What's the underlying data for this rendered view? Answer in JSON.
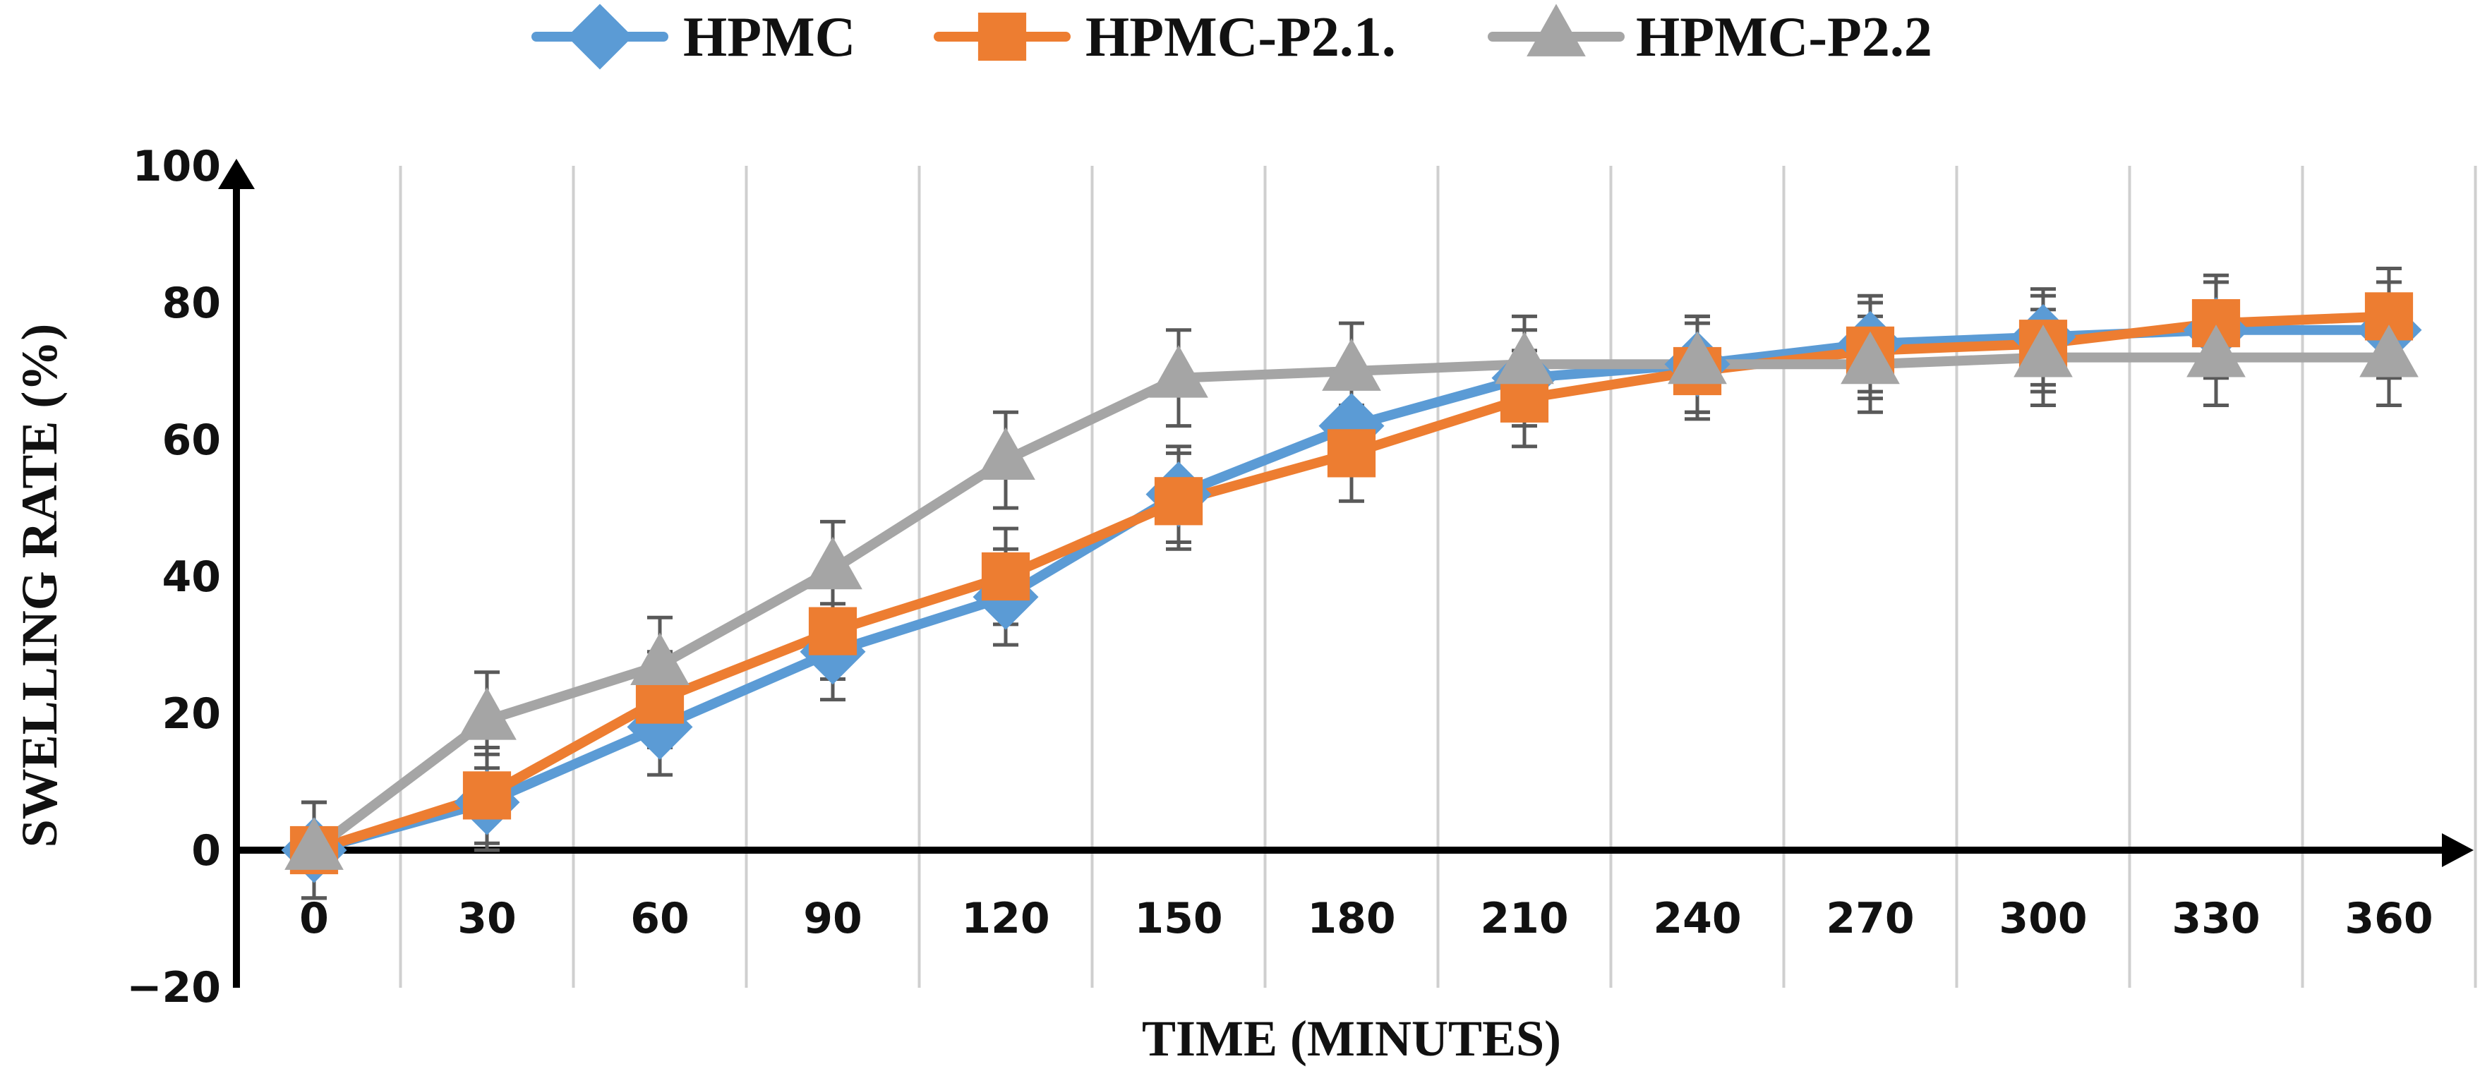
{
  "chart_data": {
    "type": "line",
    "title": "",
    "xlabel": "TIME (MINUTES)",
    "ylabel": "SWELLING RATE (%)",
    "categories": [
      "0",
      "30",
      "60",
      "90",
      "120",
      "150",
      "180",
      "210",
      "240",
      "270",
      "300",
      "330",
      "360"
    ],
    "x": [
      0,
      30,
      60,
      90,
      120,
      150,
      180,
      210,
      240,
      270,
      300,
      330,
      360
    ],
    "yticks": [
      "−20",
      "0",
      "20",
      "40",
      "60",
      "80",
      "100"
    ],
    "ytick_values": [
      -20,
      0,
      20,
      40,
      60,
      80,
      100
    ],
    "ylim": [
      -20,
      100
    ],
    "grid": "vertical",
    "legend_position": "top-center",
    "error_bar": 7,
    "series": [
      {
        "name": "HPMC",
        "color": "#5b9bd5",
        "marker": "diamond",
        "values": [
          0,
          7,
          18,
          29,
          37,
          52,
          62,
          69,
          71,
          74,
          75,
          76,
          76
        ]
      },
      {
        "name": "HPMC-P2.1.",
        "color": "#ed7d31",
        "marker": "square",
        "values": [
          0,
          8,
          22,
          32,
          40,
          51,
          58,
          66,
          70,
          73,
          74,
          77,
          78
        ]
      },
      {
        "name": "HPMC-P2.2",
        "color": "#a5a5a5",
        "marker": "triangle",
        "values": [
          0,
          19,
          27,
          41,
          57,
          69,
          70,
          71,
          71,
          71,
          72,
          72,
          72
        ]
      }
    ]
  }
}
